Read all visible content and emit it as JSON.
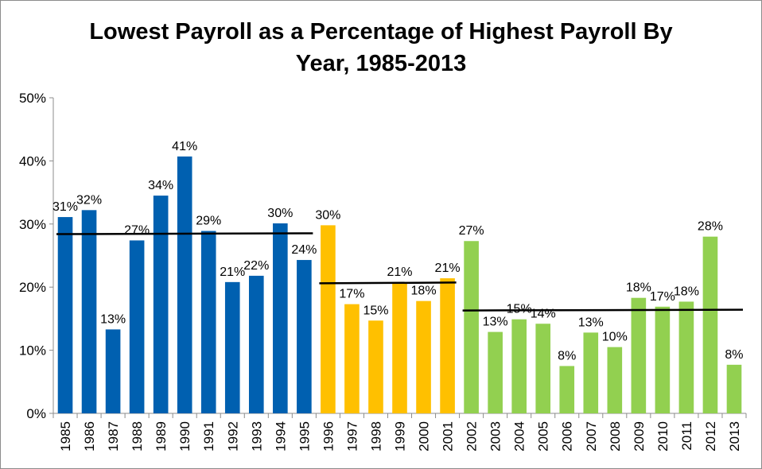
{
  "chart_data": {
    "type": "bar",
    "title_line1": "Lowest Payroll as a Percentage of Highest Payroll By",
    "title_line2": "Year, 1985-2013",
    "xlabel": "",
    "ylabel": "",
    "ylim": [
      0,
      50
    ],
    "yticks": [
      "0%",
      "10%",
      "20%",
      "30%",
      "40%",
      "50%"
    ],
    "grid": false,
    "legend": "none",
    "categories": [
      "1985",
      "1986",
      "1987",
      "1988",
      "1989",
      "1990",
      "1991",
      "1992",
      "1993",
      "1994",
      "1995",
      "1996",
      "1997",
      "1998",
      "1999",
      "2000",
      "2001",
      "2002",
      "2003",
      "2004",
      "2005",
      "2006",
      "2007",
      "2008",
      "2009",
      "2010",
      "2011",
      "2012",
      "2013"
    ],
    "values": [
      31.1,
      32.2,
      13.3,
      27.4,
      34.5,
      40.7,
      28.9,
      20.8,
      21.8,
      30.1,
      24.3,
      29.8,
      17.3,
      14.7,
      20.8,
      17.8,
      21.4,
      27.3,
      12.9,
      14.9,
      14.2,
      7.5,
      12.8,
      10.5,
      18.3,
      16.9,
      17.7,
      28.0,
      7.7
    ],
    "labels": [
      "31%",
      "32%",
      "13%",
      "27%",
      "34%",
      "41%",
      "29%",
      "21%",
      "22%",
      "30%",
      "24%",
      "30%",
      "17%",
      "15%",
      "21%",
      "18%",
      "21%",
      "27%",
      "13%",
      "15%",
      "14%",
      "8%",
      "13%",
      "10%",
      "18%",
      "17%",
      "18%",
      "28%",
      "8%"
    ],
    "group_colors": [
      "#0060b0",
      "#ffc000",
      "#92d050"
    ],
    "groups": [
      {
        "start": 0,
        "end": 10,
        "color": "#0060b0",
        "average": 28.4
      },
      {
        "start": 11,
        "end": 16,
        "color": "#ffc000",
        "average": 20.6
      },
      {
        "start": 17,
        "end": 28,
        "color": "#92d050",
        "average": 16.3
      }
    ],
    "average_line_color": "#000000"
  }
}
